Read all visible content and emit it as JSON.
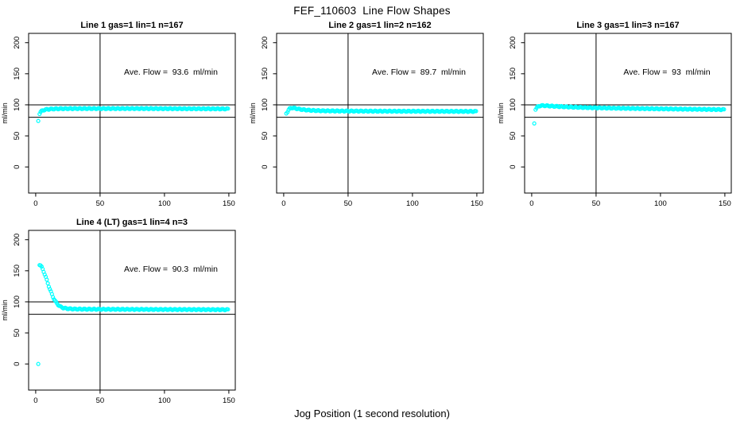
{
  "page": {
    "title": "FEF_110603  Line Flow Shapes",
    "xlabel_bottom": "Jog Position (1 second resolution)",
    "background": "#ffffff",
    "axis_color": "#000000"
  },
  "chart_data": [
    {
      "type": "scatter",
      "title": "Line 1 gas=1 lin=1 n=167",
      "annotation": "Ave. Flow =  93.6  ml/min",
      "ave_flow": 93.6,
      "n": 167,
      "ylabel": "ml/min",
      "xticks": [
        0,
        50,
        100,
        150
      ],
      "yticks": [
        0,
        50,
        100,
        150,
        200
      ],
      "xlim": [
        -5.5,
        155
      ],
      "ylim": [
        -42,
        215
      ],
      "ref_lines_y": [
        100,
        80
      ],
      "ref_line_x": 50,
      "marker_color": "#00ffff",
      "outliers": [
        [
          2,
          74
        ]
      ],
      "band_keypoints": [
        [
          3,
          86
        ],
        [
          4,
          89
        ],
        [
          5,
          90.5
        ],
        [
          6,
          91.5
        ],
        [
          8,
          92.5
        ],
        [
          10,
          93
        ],
        [
          14,
          93.5
        ],
        [
          20,
          93.8
        ],
        [
          30,
          94
        ],
        [
          50,
          94
        ],
        [
          80,
          94
        ],
        [
          110,
          93.8
        ],
        [
          140,
          93.6
        ],
        [
          150,
          93.5
        ]
      ]
    },
    {
      "type": "scatter",
      "title": "Line 2 gas=1 lin=2 n=162",
      "annotation": "Ave. Flow =  89.7  ml/min",
      "ave_flow": 89.7,
      "n": 162,
      "ylabel": "ml/min",
      "xticks": [
        0,
        50,
        100,
        150
      ],
      "yticks": [
        0,
        50,
        100,
        150,
        200
      ],
      "xlim": [
        -5.5,
        155
      ],
      "ylim": [
        -42,
        215
      ],
      "ref_lines_y": [
        100,
        80
      ],
      "ref_line_x": 50,
      "marker_color": "#00ffff",
      "outliers": [
        [
          2,
          86
        ]
      ],
      "band_keypoints": [
        [
          3,
          89
        ],
        [
          4,
          92.5
        ],
        [
          5,
          94.5
        ],
        [
          6,
          95.3
        ],
        [
          8,
          94.8
        ],
        [
          10,
          94
        ],
        [
          13,
          92.8
        ],
        [
          17,
          91.8
        ],
        [
          22,
          91
        ],
        [
          30,
          90.4
        ],
        [
          45,
          90
        ],
        [
          70,
          89.8
        ],
        [
          110,
          89.6
        ],
        [
          150,
          89.4
        ]
      ]
    },
    {
      "type": "scatter",
      "title": "Line 3 gas=1 lin=3 n=167",
      "annotation": "Ave. Flow =  93  ml/min",
      "ave_flow": 93,
      "n": 167,
      "ylabel": "ml/min",
      "xticks": [
        0,
        50,
        100,
        150
      ],
      "yticks": [
        0,
        50,
        100,
        150,
        200
      ],
      "xlim": [
        -5.5,
        155
      ],
      "ylim": [
        -42,
        215
      ],
      "ref_lines_y": [
        100,
        80
      ],
      "ref_line_x": 50,
      "marker_color": "#00ffff",
      "outliers": [
        [
          2,
          70
        ]
      ],
      "band_keypoints": [
        [
          3,
          93
        ],
        [
          4,
          95.5
        ],
        [
          5,
          97.5
        ],
        [
          7,
          98.7
        ],
        [
          10,
          98.7
        ],
        [
          15,
          98
        ],
        [
          22,
          97.2
        ],
        [
          32,
          96.3
        ],
        [
          45,
          95.4
        ],
        [
          65,
          94.6
        ],
        [
          90,
          93.8
        ],
        [
          115,
          93.2
        ],
        [
          135,
          92.7
        ],
        [
          150,
          92.3
        ]
      ]
    },
    {
      "type": "scatter",
      "title": "Line 4 (LT) gas=1 lin=4 n=3",
      "annotation": "Ave. Flow =  90.3  ml/min",
      "ave_flow": 90.3,
      "n": 3,
      "ylabel": "ml/min",
      "xticks": [
        0,
        50,
        100,
        150
      ],
      "yticks": [
        0,
        50,
        100,
        150,
        200
      ],
      "xlim": [
        -5.5,
        155
      ],
      "ylim": [
        -42,
        215
      ],
      "ref_lines_y": [
        100,
        80
      ],
      "ref_line_x": 50,
      "marker_color": "#00ffff",
      "outliers": [
        [
          2,
          0
        ]
      ],
      "band_keypoints": [
        [
          3,
          160
        ],
        [
          4,
          158
        ],
        [
          5,
          154.5
        ],
        [
          6,
          150
        ],
        [
          7,
          144.5
        ],
        [
          8,
          138.5
        ],
        [
          9,
          132.5
        ],
        [
          10,
          126.5
        ],
        [
          11,
          120.5
        ],
        [
          12,
          115
        ],
        [
          13,
          110
        ],
        [
          14,
          105.5
        ],
        [
          15,
          101.8
        ],
        [
          16,
          98.7
        ],
        [
          17,
          96.2
        ],
        [
          18,
          94.2
        ],
        [
          19,
          92.6
        ],
        [
          20,
          91.4
        ],
        [
          22,
          90
        ],
        [
          25,
          89
        ],
        [
          30,
          88.4
        ],
        [
          40,
          88.2
        ],
        [
          60,
          88
        ],
        [
          90,
          87.8
        ],
        [
          120,
          87.6
        ],
        [
          150,
          87.4
        ]
      ]
    }
  ]
}
